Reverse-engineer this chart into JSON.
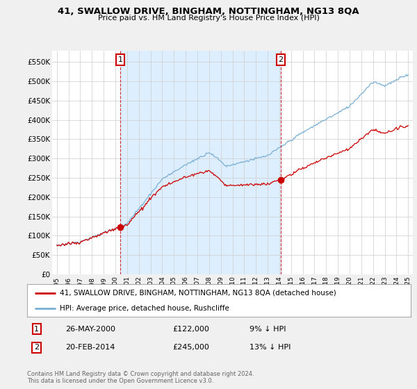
{
  "title": "41, SWALLOW DRIVE, BINGHAM, NOTTINGHAM, NG13 8QA",
  "subtitle": "Price paid vs. HM Land Registry's House Price Index (HPI)",
  "sale1_x": 2000.42,
  "sale1_y": 122000,
  "sale2_x": 2014.12,
  "sale2_y": 245000,
  "legend_line1": "41, SWALLOW DRIVE, BINGHAM, NOTTINGHAM, NG13 8QA (detached house)",
  "legend_line2": "HPI: Average price, detached house, Rushcliffe",
  "ann1_date": "26-MAY-2000",
  "ann1_price": "£122,000",
  "ann1_pct": "9% ↓ HPI",
  "ann2_date": "20-FEB-2014",
  "ann2_price": "£245,000",
  "ann2_pct": "13% ↓ HPI",
  "footer": "Contains HM Land Registry data © Crown copyright and database right 2024.\nThis data is licensed under the Open Government Licence v3.0.",
  "price_color": "#cc0000",
  "hpi_color": "#7ab0d4",
  "shade_color": "#ddeeff",
  "ylim": [
    0,
    580000
  ],
  "xlim_start": 1994.6,
  "xlim_end": 2025.4,
  "yticks": [
    0,
    50000,
    100000,
    150000,
    200000,
    250000,
    300000,
    350000,
    400000,
    450000,
    500000,
    550000
  ],
  "ytick_labels": [
    "£0",
    "£50K",
    "£100K",
    "£150K",
    "£200K",
    "£250K",
    "£300K",
    "£350K",
    "£400K",
    "£450K",
    "£500K",
    "£550K"
  ],
  "background_color": "#f0f0f0",
  "plot_bg_color": "#ffffff"
}
